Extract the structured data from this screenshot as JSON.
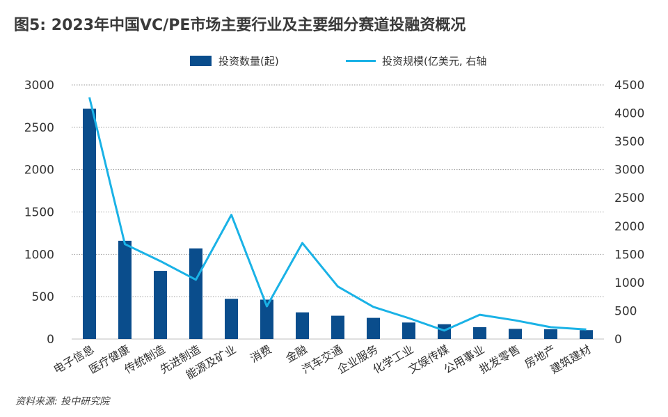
{
  "title": "图5: 2023年中国VC/PE市场主要行业及主要细分赛道投融资概况",
  "source": "资料来源: 投中研究院",
  "colors": {
    "bar": "#0a4d8c",
    "line": "#1ab2e6",
    "grid": "#9a9a9a"
  },
  "chart_data": {
    "type": "bar",
    "categories": [
      "电子信息",
      "医疗健康",
      "传统制造",
      "先进制造",
      "能源及矿业",
      "消费",
      "金融",
      "汽车交通",
      "企业服务",
      "化学工业",
      "文娱传媒",
      "公用事业",
      "批发零售",
      "房地产",
      "建筑建材"
    ],
    "series": [
      {
        "name": "投资数量(起)",
        "type": "bar",
        "axis": "left",
        "values": [
          2720,
          1160,
          805,
          1070,
          475,
          465,
          315,
          275,
          250,
          195,
          175,
          140,
          120,
          115,
          105
        ]
      },
      {
        "name": "投资规模(亿美元, 右轴",
        "type": "line",
        "axis": "right",
        "values": [
          4280,
          1680,
          1380,
          1050,
          2200,
          580,
          1700,
          930,
          570,
          370,
          150,
          430,
          330,
          210,
          170
        ]
      }
    ],
    "y_left": {
      "min": 0,
      "max": 3000,
      "ticks": [
        0,
        500,
        1000,
        1500,
        2000,
        2500,
        3000
      ]
    },
    "y_right": {
      "min": 0,
      "max": 4500,
      "ticks": [
        0,
        500,
        1000,
        1500,
        2000,
        2500,
        3000,
        3500,
        4000,
        4500
      ]
    },
    "grid": true,
    "legend_position": "top"
  }
}
